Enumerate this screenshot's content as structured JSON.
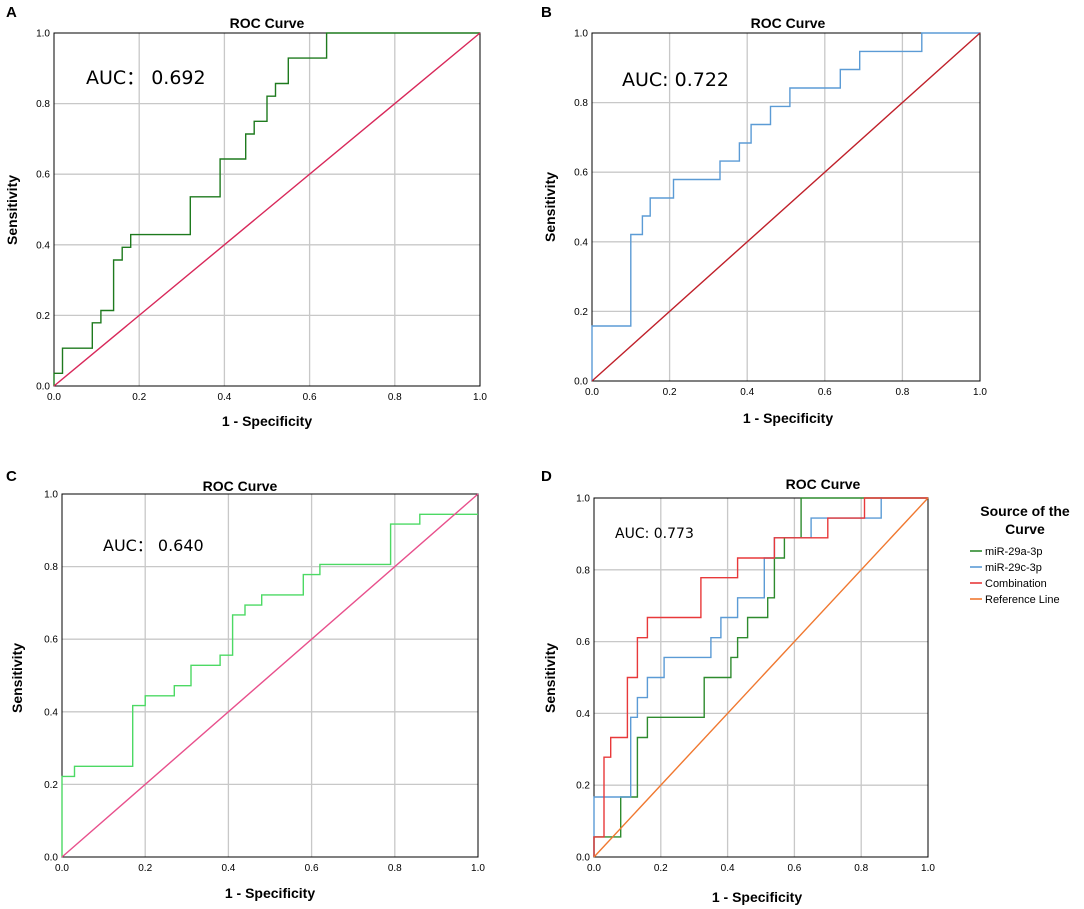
{
  "chart_data": [
    {
      "panel": "A",
      "type": "line",
      "title": "ROC Curve",
      "xlabel": "1 - Specificity",
      "ylabel": "Sensitivity",
      "xlim": [
        0,
        1
      ],
      "ylim": [
        0,
        1
      ],
      "xticks": [
        "0.0",
        "0.2",
        "0.4",
        "0.6",
        "0.8",
        "1.0"
      ],
      "yticks": [
        "0.0",
        "0.2",
        "0.4",
        "0.6",
        "0.8",
        "1.0"
      ],
      "grid": true,
      "annotation": "AUC：  0.692",
      "series": [
        {
          "name": "ROC",
          "color": "#1e7a1e",
          "x": [
            0,
            0,
            0.02,
            0.02,
            0.09,
            0.09,
            0.11,
            0.11,
            0.14,
            0.14,
            0.16,
            0.16,
            0.18,
            0.18,
            0.32,
            0.32,
            0.39,
            0.39,
            0.45,
            0.45,
            0.47,
            0.47,
            0.5,
            0.5,
            0.52,
            0.52,
            0.55,
            0.55,
            0.64,
            0.64,
            1.0
          ],
          "y": [
            0,
            0.036,
            0.036,
            0.107,
            0.107,
            0.179,
            0.179,
            0.214,
            0.214,
            0.357,
            0.357,
            0.393,
            0.393,
            0.429,
            0.429,
            0.536,
            0.536,
            0.643,
            0.643,
            0.714,
            0.714,
            0.75,
            0.75,
            0.821,
            0.821,
            0.857,
            0.857,
            0.929,
            0.929,
            1.0,
            1.0
          ]
        },
        {
          "name": "Reference Line",
          "color": "#d8285a",
          "x": [
            0,
            1
          ],
          "y": [
            0,
            1
          ]
        }
      ]
    },
    {
      "panel": "B",
      "type": "line",
      "title": "ROC Curve",
      "xlabel": "1 - Specificity",
      "ylabel": "Sensitivity",
      "xlim": [
        0,
        1
      ],
      "ylim": [
        0,
        1
      ],
      "xticks": [
        "0.0",
        "0.2",
        "0.4",
        "0.6",
        "0.8",
        "1.0"
      ],
      "yticks": [
        "0.0",
        "0.2",
        "0.4",
        "0.6",
        "0.8",
        "1.0"
      ],
      "grid": true,
      "annotation": "AUC:  0.722",
      "series": [
        {
          "name": "ROC",
          "color": "#5b9bd5",
          "x": [
            0,
            0,
            0.1,
            0.1,
            0.13,
            0.13,
            0.15,
            0.15,
            0.21,
            0.21,
            0.33,
            0.33,
            0.38,
            0.38,
            0.41,
            0.41,
            0.46,
            0.46,
            0.51,
            0.51,
            0.64,
            0.64,
            0.69,
            0.69,
            0.85,
            0.85,
            1.0
          ],
          "y": [
            0,
            0.158,
            0.158,
            0.421,
            0.421,
            0.474,
            0.474,
            0.526,
            0.526,
            0.579,
            0.579,
            0.632,
            0.632,
            0.684,
            0.684,
            0.737,
            0.737,
            0.789,
            0.789,
            0.842,
            0.842,
            0.895,
            0.895,
            0.947,
            0.947,
            1.0,
            1.0
          ]
        },
        {
          "name": "Reference Line",
          "color": "#c0202a",
          "x": [
            0,
            1
          ],
          "y": [
            0,
            1
          ]
        }
      ]
    },
    {
      "panel": "C",
      "type": "line",
      "title": "ROC Curve",
      "xlabel": "1 - Specificity",
      "ylabel": "Sensitivity",
      "xlim": [
        0,
        1
      ],
      "ylim": [
        0,
        1
      ],
      "xticks": [
        "0.0",
        "0.2",
        "0.4",
        "0.6",
        "0.8",
        "1.0"
      ],
      "yticks": [
        "0.0",
        "0.2",
        "0.4",
        "0.6",
        "0.8",
        "1.0"
      ],
      "grid": true,
      "annotation": "AUC：  0.640",
      "series": [
        {
          "name": "ROC",
          "color": "#4cd964",
          "x": [
            0,
            0,
            0.03,
            0.03,
            0.17,
            0.17,
            0.2,
            0.2,
            0.27,
            0.27,
            0.31,
            0.31,
            0.38,
            0.38,
            0.41,
            0.41,
            0.44,
            0.44,
            0.48,
            0.48,
            0.58,
            0.58,
            0.62,
            0.62,
            0.79,
            0.79,
            0.86,
            0.86,
            1.0
          ],
          "y": [
            0,
            0.222,
            0.222,
            0.25,
            0.25,
            0.417,
            0.417,
            0.444,
            0.444,
            0.472,
            0.472,
            0.528,
            0.528,
            0.556,
            0.556,
            0.667,
            0.667,
            0.694,
            0.694,
            0.722,
            0.722,
            0.778,
            0.778,
            0.806,
            0.806,
            0.917,
            0.917,
            0.944,
            0.944
          ]
        },
        {
          "name": "Reference Line",
          "color": "#e8508c",
          "x": [
            0,
            1
          ],
          "y": [
            0,
            1
          ]
        }
      ]
    },
    {
      "panel": "D",
      "type": "line",
      "title": "ROC Curve",
      "xlabel": "1 - Specificity",
      "ylabel": "Sensitivity",
      "xlim": [
        0,
        1
      ],
      "ylim": [
        0,
        1
      ],
      "xticks": [
        "0.0",
        "0.2",
        "0.4",
        "0.6",
        "0.8",
        "1.0"
      ],
      "yticks": [
        "0.0",
        "0.2",
        "0.4",
        "0.6",
        "0.8",
        "1.0"
      ],
      "grid": true,
      "annotation": "AUC: 0.773",
      "legend": {
        "title_line1": "Source of the",
        "title_line2": "Curve",
        "placement": "right"
      },
      "series": [
        {
          "name": "miR-29a-3p",
          "color": "#2e8b2e",
          "x": [
            0,
            0,
            0.08,
            0.08,
            0.13,
            0.13,
            0.16,
            0.16,
            0.33,
            0.33,
            0.41,
            0.41,
            0.43,
            0.43,
            0.46,
            0.46,
            0.52,
            0.52,
            0.54,
            0.54,
            0.57,
            0.57,
            0.62,
            0.62,
            1.0
          ],
          "y": [
            0,
            0.056,
            0.056,
            0.167,
            0.167,
            0.333,
            0.333,
            0.389,
            0.389,
            0.5,
            0.5,
            0.556,
            0.556,
            0.611,
            0.611,
            0.667,
            0.667,
            0.722,
            0.722,
            0.833,
            0.833,
            0.889,
            0.889,
            1.0,
            1.0
          ]
        },
        {
          "name": "miR-29c-3p",
          "color": "#5b9bd5",
          "x": [
            0,
            0,
            0.11,
            0.11,
            0.13,
            0.13,
            0.16,
            0.16,
            0.21,
            0.21,
            0.35,
            0.35,
            0.38,
            0.38,
            0.43,
            0.43,
            0.51,
            0.51,
            0.54,
            0.54,
            0.65,
            0.65,
            0.84,
            0.84,
            0.86,
            0.86
          ],
          "y": [
            0,
            0.167,
            0.167,
            0.389,
            0.389,
            0.444,
            0.444,
            0.5,
            0.5,
            0.556,
            0.556,
            0.611,
            0.611,
            0.667,
            0.667,
            0.722,
            0.722,
            0.833,
            0.833,
            0.889,
            0.889,
            0.944,
            0.944,
            0.944,
            0.944,
            1.0
          ]
        },
        {
          "name": "Combination",
          "color": "#e8393a",
          "x": [
            0,
            0,
            0.03,
            0.03,
            0.05,
            0.05,
            0.1,
            0.1,
            0.13,
            0.13,
            0.16,
            0.16,
            0.32,
            0.32,
            0.43,
            0.43,
            0.54,
            0.54,
            0.7,
            0.7,
            0.81,
            0.81,
            1.0
          ],
          "y": [
            0,
            0.056,
            0.056,
            0.278,
            0.278,
            0.333,
            0.333,
            0.5,
            0.5,
            0.611,
            0.611,
            0.667,
            0.667,
            0.778,
            0.778,
            0.833,
            0.833,
            0.889,
            0.889,
            0.944,
            0.944,
            1.0,
            1.0
          ]
        },
        {
          "name": "Reference Line",
          "color": "#f07830",
          "x": [
            0,
            1
          ],
          "y": [
            0,
            1
          ]
        }
      ]
    }
  ]
}
